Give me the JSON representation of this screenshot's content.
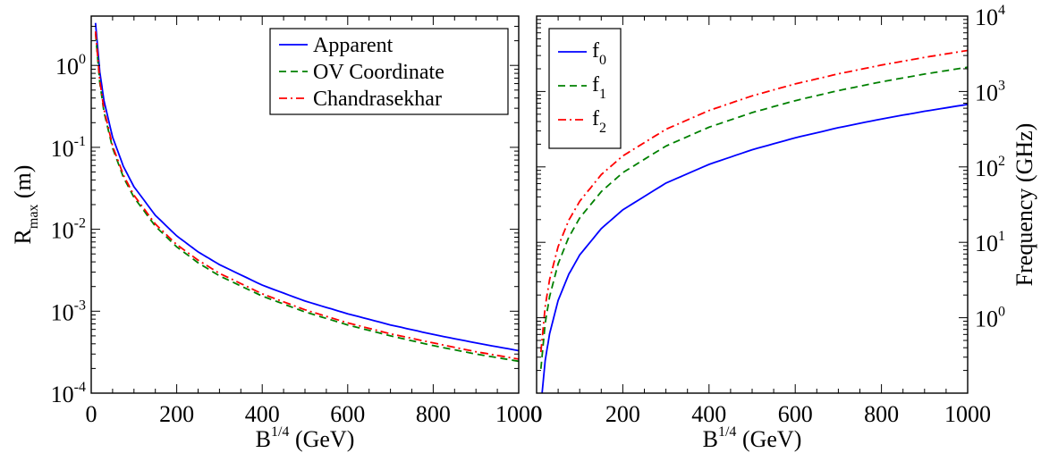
{
  "figure": {
    "background": "#ffffff"
  },
  "chart_data": [
    {
      "type": "line",
      "xlabel_base": "B",
      "xlabel_sup": "1/4",
      "xlabel_rest": " (GeV)",
      "ylabel_base": "R",
      "ylabel_sub": "max",
      "ylabel_rest": " (m)",
      "xlim": [
        0,
        1000
      ],
      "ylim": [
        0.0001,
        4
      ],
      "yscale": "log",
      "xticks": [
        0,
        200,
        400,
        600,
        800,
        1000
      ],
      "xtick_labels": [
        "0",
        "200",
        "400",
        "600",
        "800",
        "1000"
      ],
      "yticks": [
        0.0001,
        0.001,
        0.01,
        0.1,
        1
      ],
      "ytick_labels": [
        {
          "base": "10",
          "exp": "-4"
        },
        {
          "base": "10",
          "exp": "-3"
        },
        {
          "base": "10",
          "exp": "-2"
        },
        {
          "base": "10",
          "exp": "-1"
        },
        {
          "base": "10",
          "exp": "0"
        }
      ],
      "grid": false,
      "legend_position": "top-right",
      "series": [
        {
          "name": "Apparent",
          "color": "#0000ff",
          "style": "solid",
          "x": [
            10,
            20,
            30,
            50,
            75,
            100,
            150,
            200,
            250,
            300,
            400,
            500,
            600,
            700,
            800,
            900,
            1000
          ],
          "y": [
            3.3,
            0.83,
            0.37,
            0.133,
            0.059,
            0.033,
            0.0148,
            0.0083,
            0.0053,
            0.0037,
            0.00208,
            0.00133,
            0.00093,
            0.00068,
            0.00052,
            0.00041,
            0.00033
          ]
        },
        {
          "name": "OV Coordinate",
          "color": "#008000",
          "style": "dashed",
          "x": [
            10,
            20,
            30,
            50,
            75,
            100,
            150,
            200,
            250,
            300,
            400,
            500,
            600,
            700,
            800,
            900,
            1000
          ],
          "y": [
            2.45,
            0.61,
            0.27,
            0.098,
            0.0435,
            0.0245,
            0.0109,
            0.0061,
            0.0039,
            0.0027,
            0.00153,
            0.00098,
            0.00068,
            0.0005,
            0.00038,
            0.0003,
            0.000245
          ]
        },
        {
          "name": "Chandrasekhar",
          "color": "#ff0000",
          "style": "dashdot",
          "x": [
            10,
            20,
            30,
            50,
            75,
            100,
            150,
            200,
            250,
            300,
            400,
            500,
            600,
            700,
            800,
            900,
            1000
          ],
          "y": [
            2.6,
            0.65,
            0.29,
            0.104,
            0.0462,
            0.026,
            0.0116,
            0.0065,
            0.0042,
            0.0029,
            0.00163,
            0.00104,
            0.00072,
            0.00053,
            0.00041,
            0.00032,
            0.00026
          ]
        }
      ]
    },
    {
      "type": "line",
      "xlabel_base": "B",
      "xlabel_sup": "1/4",
      "xlabel_rest": " (GeV)",
      "ylabel": "Frequency (GHz)",
      "xlim": [
        0,
        1000
      ],
      "ylim": [
        0.1,
        10000
      ],
      "yscale": "log",
      "xticks": [
        0,
        200,
        400,
        600,
        800,
        1000
      ],
      "xtick_labels": [
        "0",
        "200",
        "400",
        "600",
        "800",
        "1000"
      ],
      "yticks": [
        1,
        10,
        100,
        1000,
        10000
      ],
      "ytick_labels": [
        {
          "base": "10",
          "exp": "0"
        },
        {
          "base": "10",
          "exp": "1"
        },
        {
          "base": "10",
          "exp": "2"
        },
        {
          "base": "10",
          "exp": "3"
        },
        {
          "base": "10",
          "exp": "4"
        }
      ],
      "grid": false,
      "legend_position": "top-left",
      "series": [
        {
          "name_base": "f",
          "name_sub": "0",
          "color": "#0000ff",
          "style": "solid",
          "x": [
            10,
            20,
            30,
            50,
            75,
            100,
            150,
            200,
            300,
            400,
            500,
            600,
            700,
            800,
            900,
            1000
          ],
          "y": [
            0.068,
            0.27,
            0.61,
            1.7,
            3.8,
            6.8,
            15.2,
            27,
            61,
            108,
            169,
            243,
            331,
            432,
            547,
            675
          ]
        },
        {
          "name_base": "f",
          "name_sub": "1",
          "color": "#008000",
          "style": "dashed",
          "x": [
            10,
            20,
            30,
            50,
            75,
            100,
            150,
            200,
            300,
            400,
            500,
            600,
            700,
            800,
            900,
            1000
          ],
          "y": [
            0.21,
            0.84,
            1.9,
            5.2,
            11.8,
            21,
            47,
            84,
            189,
            336,
            525,
            756,
            1029,
            1344,
            1701,
            2100
          ]
        },
        {
          "name_base": "f",
          "name_sub": "2",
          "color": "#ff0000",
          "style": "dashdot",
          "x": [
            10,
            20,
            30,
            50,
            75,
            100,
            150,
            200,
            300,
            400,
            500,
            600,
            700,
            800,
            900,
            1000
          ],
          "y": [
            0.35,
            1.4,
            3.2,
            8.8,
            19.8,
            35,
            79,
            140,
            315,
            560,
            875,
            1260,
            1715,
            2240,
            2835,
            3500
          ]
        }
      ]
    }
  ]
}
